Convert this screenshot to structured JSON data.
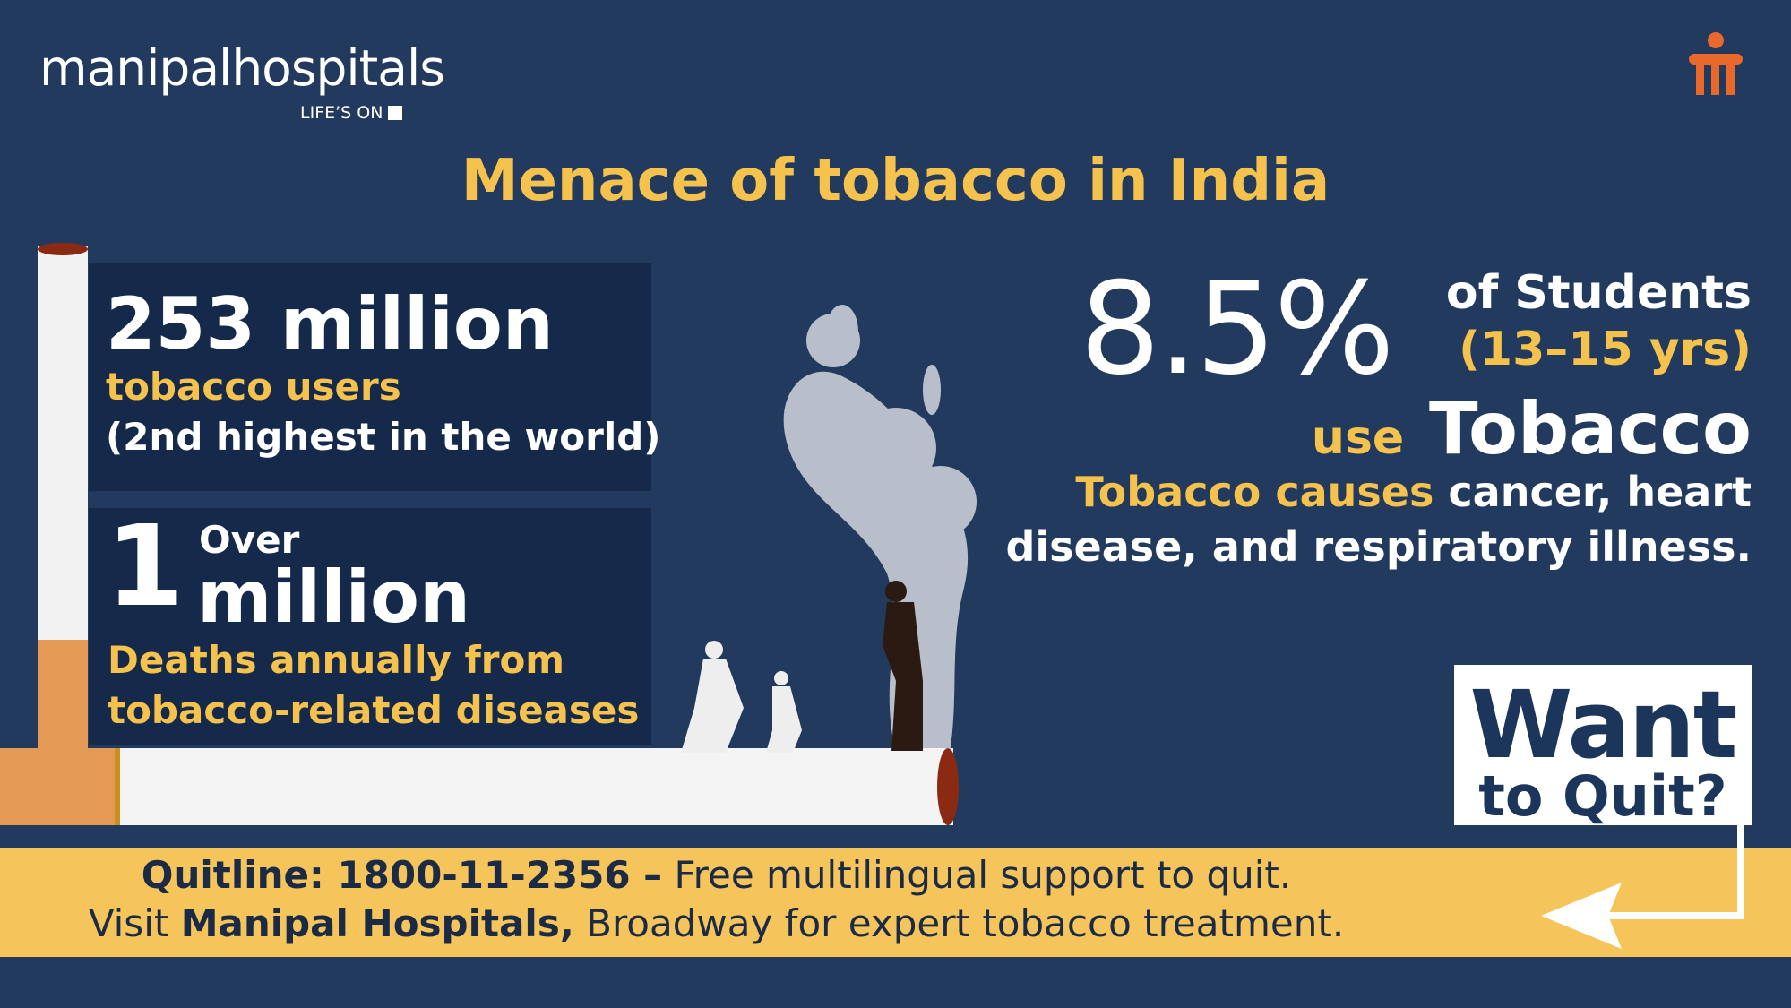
{
  "logo": {
    "name": "manipalhospitals",
    "tagline": "LIFE’S ON"
  },
  "title": "Menace of tobacco in India",
  "stat_users": {
    "number": "253 million",
    "label": "tobacco users",
    "note": "(2nd highest in the world)"
  },
  "stat_deaths": {
    "number": "1",
    "prefix": "Over",
    "unit": "million",
    "label_lines": [
      "Deaths annually from",
      "tobacco-related diseases"
    ]
  },
  "students": {
    "percent": "8.5%",
    "group": "of Students",
    "age": "(13–15 yrs)",
    "verb": "use",
    "object": "Tobacco",
    "causes_highlight": "Tobacco causes",
    "causes_lines": [
      "cancer, heart",
      "disease, and respiratory illness."
    ]
  },
  "cta": {
    "line1": "Want",
    "line2": "to Quit?"
  },
  "footer": {
    "line1_bold": "Quitline: 1800-11-2356 –",
    "line1_rest": "Free multilingual support to quit.",
    "line2_start": "Visit",
    "line2_bold": "Manipal Hospitals,",
    "line2_rest": "Broadway for expert tobacco treatment."
  }
}
